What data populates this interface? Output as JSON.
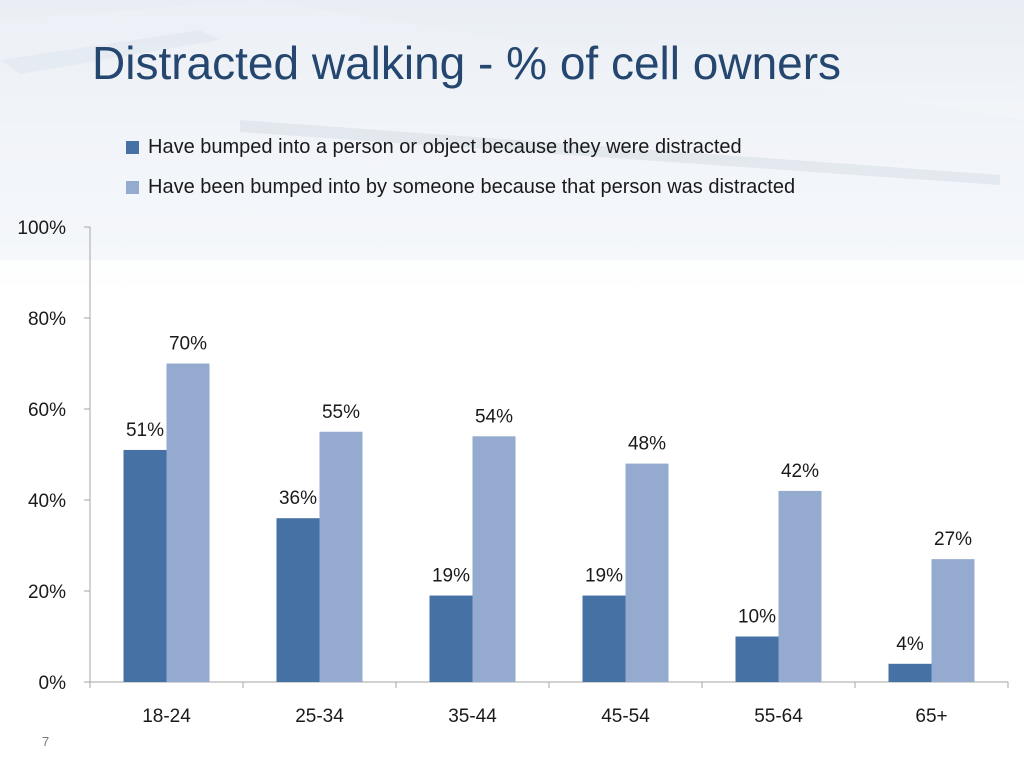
{
  "slide": {
    "title": "Distracted walking - % of cell owners",
    "page_number": "7"
  },
  "colors": {
    "series1": "#4671a5",
    "series2": "#94aacf",
    "title": "#24466f",
    "axis": "#a6a6a6"
  },
  "chart_data": {
    "type": "bar",
    "title": "",
    "xlabel": "",
    "ylabel": "",
    "categories": [
      "18-24",
      "25-34",
      "35-44",
      "45-54",
      "55-64",
      "65+"
    ],
    "series": [
      {
        "name": "Have bumped into a person or object because they were distracted",
        "values": [
          51,
          36,
          19,
          19,
          10,
          4
        ],
        "labels": [
          "51%",
          "36%",
          "19%",
          "19%",
          "10%",
          "4%"
        ]
      },
      {
        "name": "Have been bumped into by someone because that person was distracted",
        "values": [
          70,
          55,
          54,
          48,
          42,
          27
        ],
        "labels": [
          "70%",
          "55%",
          "54%",
          "48%",
          "42%",
          "27%"
        ]
      }
    ],
    "ylim": [
      0,
      100
    ],
    "yticks": [
      0,
      20,
      40,
      60,
      80,
      100
    ],
    "ytick_labels": [
      "0%",
      "20%",
      "40%",
      "60%",
      "80%",
      "100%"
    ],
    "grid": false,
    "legend_position": "top"
  }
}
